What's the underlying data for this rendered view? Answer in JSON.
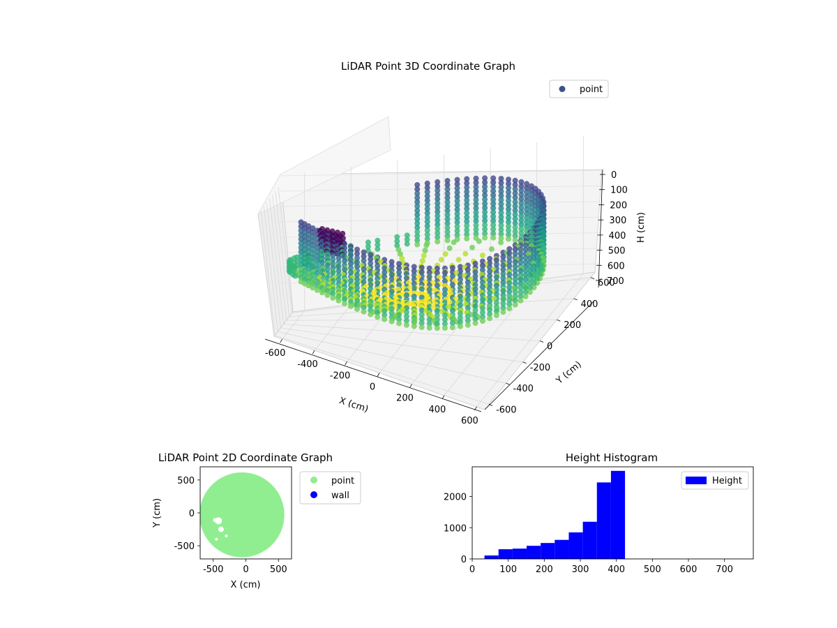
{
  "colors": {
    "histogram_bar": "#0000ff",
    "points_2d": "#90ee90",
    "wall_2d": "#0000ff",
    "legend_point_3d": "#3b528b",
    "grid_3d": "#d9d9d9",
    "pane_3d": "#f2f2f2"
  },
  "chart_data": [
    {
      "type": "scatter3d",
      "title": "LiDAR Point 3D Coordinate Graph",
      "xlabel": "X (cm)",
      "ylabel": "Y (cm)",
      "zlabel": "H (cm)",
      "xlim": [
        -650,
        650
      ],
      "ylim": [
        -650,
        650
      ],
      "zlim": [
        0,
        780
      ],
      "z_inverted": true,
      "x_ticks": [
        -600,
        -400,
        -200,
        0,
        200,
        400,
        600
      ],
      "y_ticks": [
        -600,
        -400,
        -200,
        0,
        200,
        400,
        600
      ],
      "z_ticks": [
        0,
        100,
        200,
        300,
        400,
        500,
        600,
        700
      ],
      "colormap": "viridis",
      "legend": [
        "point"
      ],
      "legend_position": "top-right",
      "grid": true,
      "series": [
        {
          "description_free": true,
          "ring_radius": 620,
          "ring_height_range": [
            40,
            420
          ],
          "wall_gap_angle_range": [
            100,
            210
          ],
          "obstacle": {
            "x": -420,
            "y": 100,
            "height_range": [
              160,
              330
            ]
          }
        }
      ]
    },
    {
      "type": "scatter",
      "title": "LiDAR Point 2D Coordinate Graph",
      "xlabel": "X (cm)",
      "ylabel": "Y (cm)",
      "xlim": [
        -700,
        700
      ],
      "ylim": [
        -700,
        700
      ],
      "x_ticks": [
        -500,
        0,
        500
      ],
      "y_ticks": [
        -500,
        0,
        500
      ],
      "legend": [
        "point",
        "wall"
      ],
      "legend_position": "outside-right",
      "series": [
        {
          "name": "point",
          "region": "disk",
          "radius": 650
        },
        {
          "name": "wall",
          "count": 0
        }
      ]
    },
    {
      "type": "bar",
      "title": "Height Histogram",
      "legend": [
        "Height"
      ],
      "legend_position": "top-right",
      "xlim": [
        0,
        780
      ],
      "ylim": [
        0,
        2950
      ],
      "x_ticks": [
        0,
        100,
        200,
        300,
        400,
        500,
        600,
        700
      ],
      "y_ticks": [
        0,
        1000,
        2000
      ],
      "bins": [
        {
          "x0": 34,
          "x1": 73,
          "value": 110
        },
        {
          "x0": 73,
          "x1": 112,
          "value": 310
        },
        {
          "x0": 112,
          "x1": 151,
          "value": 330
        },
        {
          "x0": 151,
          "x1": 190,
          "value": 420
        },
        {
          "x0": 190,
          "x1": 229,
          "value": 510
        },
        {
          "x0": 229,
          "x1": 268,
          "value": 610
        },
        {
          "x0": 268,
          "x1": 307,
          "value": 850
        },
        {
          "x0": 307,
          "x1": 346,
          "value": 1190
        },
        {
          "x0": 346,
          "x1": 385,
          "value": 2450
        },
        {
          "x0": 385,
          "x1": 424,
          "value": 2820
        }
      ]
    }
  ]
}
